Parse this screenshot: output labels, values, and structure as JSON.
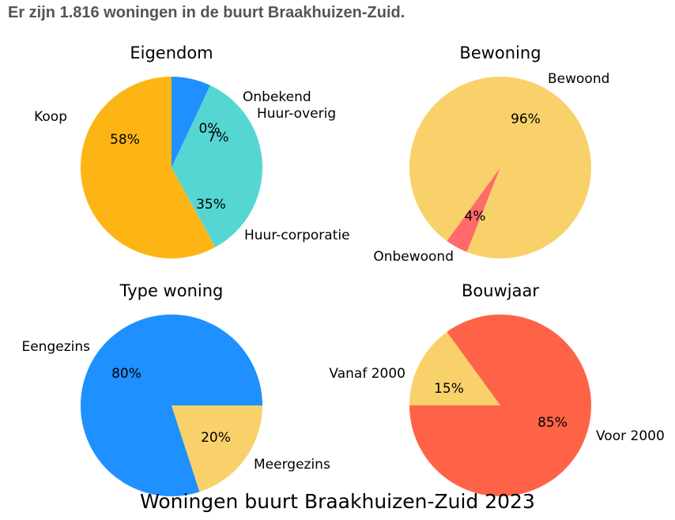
{
  "page": {
    "header": "Er zijn 1.816 woningen in de buurt Braakhuizen-Zuid.",
    "footer": "Woningen buurt Braakhuizen-Zuid 2023"
  },
  "chart_data": [
    {
      "type": "pie",
      "title": "Eigendom",
      "labels": [
        "Koop",
        "Huur-corporatie",
        "Huur-overig",
        "Onbekend"
      ],
      "values": [
        58,
        35,
        7,
        0
      ],
      "pct_labels": [
        "58%",
        "35%",
        "7%",
        "0%"
      ],
      "colors": [
        "#FDB515",
        "#55D6D2",
        "#1E90FF",
        "#888888"
      ]
    },
    {
      "type": "pie",
      "title": "Bewoning",
      "labels": [
        "Bewoond",
        "Onbewoond"
      ],
      "values": [
        96,
        4
      ],
      "pct_labels": [
        "96%",
        "4%"
      ],
      "colors": [
        "#F9D16B",
        "#FF6B6B"
      ]
    },
    {
      "type": "pie",
      "title": "Type woning",
      "labels": [
        "Eengezins",
        "Meergezins"
      ],
      "values": [
        80,
        20
      ],
      "pct_labels": [
        "80%",
        "20%"
      ],
      "colors": [
        "#1E90FF",
        "#F9D16B"
      ]
    },
    {
      "type": "pie",
      "title": "Bouwjaar",
      "labels": [
        "Vanaf 2000",
        "Voor 2000"
      ],
      "values": [
        15,
        85
      ],
      "pct_labels": [
        "15%",
        "85%"
      ],
      "colors": [
        "#F9D16B",
        "#FF6347"
      ]
    }
  ]
}
